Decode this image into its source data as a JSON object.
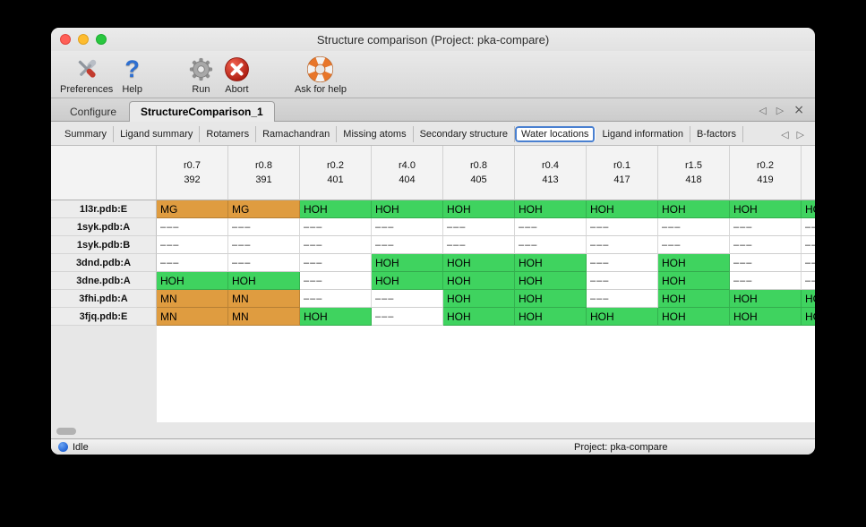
{
  "window": {
    "title": "Structure comparison (Project: pka-compare)"
  },
  "toolbar": {
    "items": [
      {
        "id": "preferences",
        "label": "Preferences"
      },
      {
        "id": "help",
        "label": "Help",
        "glyph": "?"
      },
      {
        "id": "run",
        "label": "Run"
      },
      {
        "id": "abort",
        "label": "Abort"
      },
      {
        "id": "ask-for-help",
        "label": "Ask for help"
      }
    ]
  },
  "main_tabs": {
    "tabs": [
      {
        "label": "Configure",
        "selected": false
      },
      {
        "label": "StructureComparison_1",
        "selected": true
      }
    ],
    "nav": {
      "prev": "◁",
      "next": "▷",
      "close": "×"
    }
  },
  "sub_tabs": {
    "tabs": [
      {
        "label": "Summary",
        "selected": false
      },
      {
        "label": "Ligand summary",
        "selected": false
      },
      {
        "label": "Rotamers",
        "selected": false
      },
      {
        "label": "Ramachandran",
        "selected": false
      },
      {
        "label": "Missing atoms",
        "selected": false
      },
      {
        "label": "Secondary structure",
        "selected": false
      },
      {
        "label": "Water locations",
        "selected": true
      },
      {
        "label": "Ligand information",
        "selected": false
      },
      {
        "label": "B-factors",
        "selected": false
      }
    ],
    "nav": {
      "prev": "◁",
      "next": "▷"
    }
  },
  "table": {
    "columns": [
      {
        "line1": "r0.7",
        "line2": "392"
      },
      {
        "line1": "r0.8",
        "line2": "391"
      },
      {
        "line1": "r0.2",
        "line2": "401"
      },
      {
        "line1": "r4.0",
        "line2": "404"
      },
      {
        "line1": "r0.8",
        "line2": "405"
      },
      {
        "line1": "r0.4",
        "line2": "413"
      },
      {
        "line1": "r0.1",
        "line2": "417"
      },
      {
        "line1": "r1.5",
        "line2": "418"
      },
      {
        "line1": "r0.2",
        "line2": "419"
      }
    ],
    "rows": [
      {
        "header": "1l3r.pdb:E",
        "cells": [
          {
            "text": "MG",
            "kind": "metal"
          },
          {
            "text": "MG",
            "kind": "metal"
          },
          {
            "text": "HOH",
            "kind": "water"
          },
          {
            "text": "HOH",
            "kind": "water"
          },
          {
            "text": "HOH",
            "kind": "water"
          },
          {
            "text": "HOH",
            "kind": "water"
          },
          {
            "text": "HOH",
            "kind": "water"
          },
          {
            "text": "HOH",
            "kind": "water"
          },
          {
            "text": "HOH",
            "kind": "water"
          }
        ],
        "partial": {
          "text": "HOH",
          "kind": "water"
        }
      },
      {
        "header": "1syk.pdb:A",
        "cells": [
          {
            "text": "–––",
            "kind": "none"
          },
          {
            "text": "–––",
            "kind": "none"
          },
          {
            "text": "–––",
            "kind": "none"
          },
          {
            "text": "–––",
            "kind": "none"
          },
          {
            "text": "–––",
            "kind": "none"
          },
          {
            "text": "–––",
            "kind": "none"
          },
          {
            "text": "–––",
            "kind": "none"
          },
          {
            "text": "–––",
            "kind": "none"
          },
          {
            "text": "–––",
            "kind": "none"
          }
        ],
        "partial": {
          "text": "–––",
          "kind": "none"
        }
      },
      {
        "header": "1syk.pdb:B",
        "cells": [
          {
            "text": "–––",
            "kind": "none"
          },
          {
            "text": "–––",
            "kind": "none"
          },
          {
            "text": "–––",
            "kind": "none"
          },
          {
            "text": "–––",
            "kind": "none"
          },
          {
            "text": "–––",
            "kind": "none"
          },
          {
            "text": "–––",
            "kind": "none"
          },
          {
            "text": "–––",
            "kind": "none"
          },
          {
            "text": "–––",
            "kind": "none"
          },
          {
            "text": "–––",
            "kind": "none"
          }
        ],
        "partial": {
          "text": "–––",
          "kind": "none"
        }
      },
      {
        "header": "3dnd.pdb:A",
        "cells": [
          {
            "text": "–––",
            "kind": "none"
          },
          {
            "text": "–––",
            "kind": "none"
          },
          {
            "text": "–––",
            "kind": "none"
          },
          {
            "text": "HOH",
            "kind": "water"
          },
          {
            "text": "HOH",
            "kind": "water"
          },
          {
            "text": "HOH",
            "kind": "water"
          },
          {
            "text": "–––",
            "kind": "none"
          },
          {
            "text": "HOH",
            "kind": "water"
          },
          {
            "text": "–––",
            "kind": "none"
          }
        ],
        "partial": {
          "text": "–––",
          "kind": "none"
        }
      },
      {
        "header": "3dne.pdb:A",
        "cells": [
          {
            "text": "HOH",
            "kind": "water"
          },
          {
            "text": "HOH",
            "kind": "water"
          },
          {
            "text": "–––",
            "kind": "none"
          },
          {
            "text": "HOH",
            "kind": "water"
          },
          {
            "text": "HOH",
            "kind": "water"
          },
          {
            "text": "HOH",
            "kind": "water"
          },
          {
            "text": "–––",
            "kind": "none"
          },
          {
            "text": "HOH",
            "kind": "water"
          },
          {
            "text": "–––",
            "kind": "none"
          }
        ],
        "partial": {
          "text": "–––",
          "kind": "none"
        }
      },
      {
        "header": "3fhi.pdb:A",
        "cells": [
          {
            "text": "MN",
            "kind": "metal"
          },
          {
            "text": "MN",
            "kind": "metal"
          },
          {
            "text": "–––",
            "kind": "none"
          },
          {
            "text": "–––",
            "kind": "none"
          },
          {
            "text": "HOH",
            "kind": "water"
          },
          {
            "text": "HOH",
            "kind": "water"
          },
          {
            "text": "–––",
            "kind": "none"
          },
          {
            "text": "HOH",
            "kind": "water"
          },
          {
            "text": "HOH",
            "kind": "water"
          }
        ],
        "partial": {
          "text": "HOH",
          "kind": "water"
        }
      },
      {
        "header": "3fjq.pdb:E",
        "cells": [
          {
            "text": "MN",
            "kind": "metal"
          },
          {
            "text": "MN",
            "kind": "metal"
          },
          {
            "text": "HOH",
            "kind": "water"
          },
          {
            "text": "–––",
            "kind": "none"
          },
          {
            "text": "HOH",
            "kind": "water"
          },
          {
            "text": "HOH",
            "kind": "water"
          },
          {
            "text": "HOH",
            "kind": "water"
          },
          {
            "text": "HOH",
            "kind": "water"
          },
          {
            "text": "HOH",
            "kind": "water"
          }
        ],
        "partial": {
          "text": "HOH",
          "kind": "water"
        }
      }
    ]
  },
  "statusbar": {
    "status": "Idle",
    "project": "Project: pka-compare"
  },
  "colors": {
    "water_cell": "#3fd35f",
    "metal_cell": "#df9c40",
    "tab_focus": "#4a80d0",
    "status_dot": "#2365d6"
  }
}
